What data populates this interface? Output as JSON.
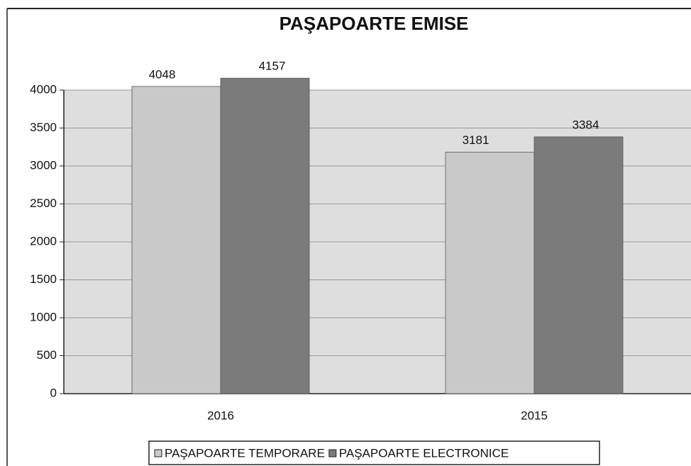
{
  "chart_data": {
    "type": "bar",
    "title": "PAŞAPOARTE EMISE",
    "categories": [
      "2016",
      "2015"
    ],
    "series": [
      {
        "name": "PAŞAPOARTE TEMPORARE",
        "color": "#c9c9c9",
        "values": [
          4048,
          3181
        ]
      },
      {
        "name": "PAŞAPOARTE ELECTRONICE",
        "color": "#7b7b7b",
        "values": [
          4157,
          3384
        ]
      }
    ],
    "ylim": [
      0,
      4000
    ],
    "yticks": [
      0,
      500,
      1000,
      1500,
      2000,
      2500,
      3000,
      3500,
      4000
    ],
    "grid": true,
    "legend": "bottom"
  }
}
